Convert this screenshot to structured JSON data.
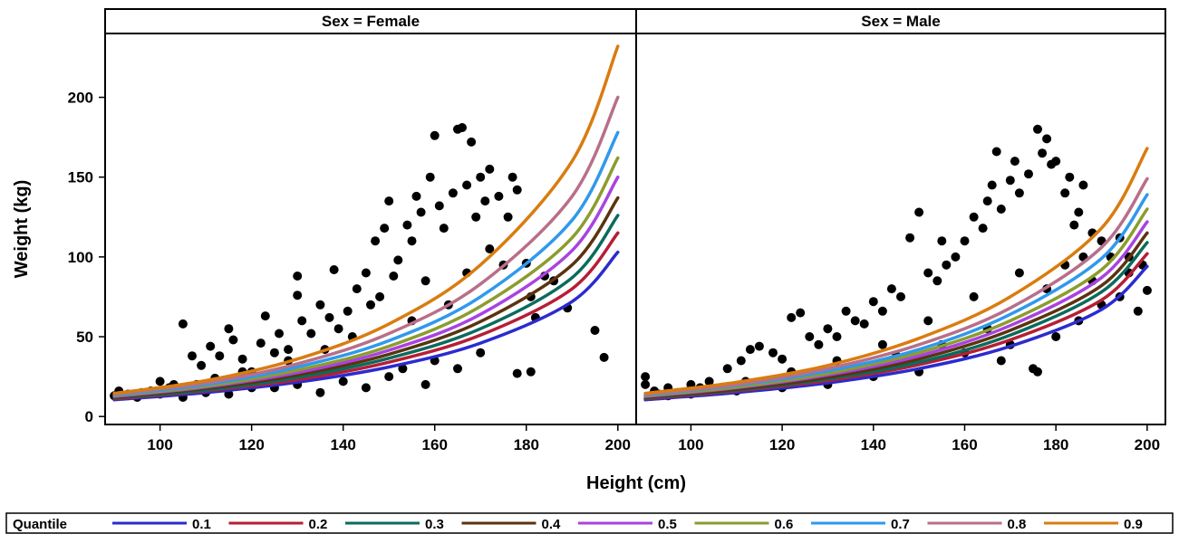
{
  "chart_data": {
    "type": "scatter",
    "xlabel": "Height (cm)",
    "ylabel": "Weight (kg)",
    "xlim": [
      88,
      204
    ],
    "ylim": [
      -5,
      240
    ],
    "xticks": [
      100,
      120,
      140,
      160,
      180,
      200
    ],
    "yticks": [
      0,
      50,
      100,
      150,
      200
    ],
    "grid": false,
    "legend_position": "bottom",
    "legend_title": "Quantile",
    "panels": [
      {
        "title": "Sex = Female",
        "curves": [
          {
            "quantile": "0.1",
            "x": [
              90,
              110,
              130,
              150,
              170,
              190,
              200
            ],
            "y": [
              10.5,
              15,
              21.5,
              31,
              46,
              72,
              103
            ]
          },
          {
            "quantile": "0.2",
            "x": [
              90,
              110,
              130,
              150,
              170,
              190,
              200
            ],
            "y": [
              11,
              16,
              23,
              34,
              51,
              80,
              115
            ]
          },
          {
            "quantile": "0.3",
            "x": [
              90,
              110,
              130,
              150,
              170,
              190,
              200
            ],
            "y": [
              11.5,
              16.5,
              24.5,
              36.5,
              55,
              87,
              126
            ]
          },
          {
            "quantile": "0.4",
            "x": [
              90,
              110,
              130,
              150,
              170,
              190,
              200
            ],
            "y": [
              12,
              17.5,
              26,
              39,
              59.5,
              95,
              137
            ]
          },
          {
            "quantile": "0.5",
            "x": [
              90,
              110,
              130,
              150,
              170,
              190,
              200
            ],
            "y": [
              12.5,
              18.5,
              27.5,
              41.5,
              64,
              104,
              150
            ]
          },
          {
            "quantile": "0.6",
            "x": [
              90,
              110,
              130,
              150,
              170,
              190,
              200
            ],
            "y": [
              13,
              19,
              29,
              44,
              69,
              112,
              162
            ]
          },
          {
            "quantile": "0.7",
            "x": [
              90,
              110,
              130,
              150,
              170,
              190,
              200
            ],
            "y": [
              13.5,
              20,
              31,
              47.5,
              75,
              123,
              178
            ]
          },
          {
            "quantile": "0.8",
            "x": [
              90,
              110,
              130,
              150,
              170,
              190,
              200
            ],
            "y": [
              14,
              21,
              33,
              52,
              83,
              138,
              200
            ]
          },
          {
            "quantile": "0.9",
            "x": [
              90,
              110,
              130,
              150,
              170,
              190,
              200
            ],
            "y": [
              14.5,
              22.5,
              36,
              58,
              95,
              160,
              232
            ]
          }
        ],
        "points": [
          [
            91,
            16
          ],
          [
            96,
            15
          ],
          [
            100,
            22
          ],
          [
            103,
            20
          ],
          [
            105,
            58
          ],
          [
            107,
            38
          ],
          [
            109,
            32
          ],
          [
            111,
            44
          ],
          [
            113,
            38
          ],
          [
            115,
            55
          ],
          [
            116,
            48
          ],
          [
            118,
            36
          ],
          [
            120,
            28
          ],
          [
            122,
            46
          ],
          [
            123,
            63
          ],
          [
            125,
            40
          ],
          [
            126,
            52
          ],
          [
            128,
            42
          ],
          [
            130,
            88
          ],
          [
            130,
            76
          ],
          [
            131,
            60
          ],
          [
            133,
            52
          ],
          [
            135,
            70
          ],
          [
            137,
            62
          ],
          [
            138,
            92
          ],
          [
            139,
            55
          ],
          [
            141,
            66
          ],
          [
            143,
            80
          ],
          [
            145,
            90
          ],
          [
            146,
            70
          ],
          [
            147,
            110
          ],
          [
            149,
            118
          ],
          [
            150,
            135
          ],
          [
            151,
            88
          ],
          [
            152,
            98
          ],
          [
            154,
            120
          ],
          [
            155,
            110
          ],
          [
            156,
            138
          ],
          [
            157,
            128
          ],
          [
            159,
            150
          ],
          [
            160,
            176
          ],
          [
            161,
            132
          ],
          [
            162,
            118
          ],
          [
            164,
            140
          ],
          [
            165,
            180
          ],
          [
            166,
            181
          ],
          [
            167,
            145
          ],
          [
            168,
            172
          ],
          [
            169,
            125
          ],
          [
            170,
            150
          ],
          [
            171,
            135
          ],
          [
            172,
            155
          ],
          [
            174,
            138
          ],
          [
            176,
            125
          ],
          [
            177,
            150
          ],
          [
            178,
            142
          ],
          [
            180,
            96
          ],
          [
            181,
            75
          ],
          [
            182,
            62
          ],
          [
            184,
            88
          ],
          [
            186,
            85
          ],
          [
            189,
            68
          ],
          [
            195,
            54
          ],
          [
            197,
            37
          ],
          [
            178,
            27
          ],
          [
            181,
            28
          ],
          [
            153,
            30
          ],
          [
            158,
            20
          ],
          [
            145,
            18
          ],
          [
            135,
            15
          ],
          [
            125,
            18
          ],
          [
            115,
            14
          ],
          [
            105,
            12
          ],
          [
            165,
            30
          ],
          [
            170,
            40
          ],
          [
            160,
            35
          ],
          [
            150,
            25
          ],
          [
            140,
            22
          ],
          [
            130,
            20
          ],
          [
            120,
            18
          ],
          [
            110,
            15
          ],
          [
            100,
            14
          ],
          [
            95,
            12
          ],
          [
            155,
            60
          ],
          [
            163,
            70
          ],
          [
            167,
            90
          ],
          [
            172,
            105
          ],
          [
            175,
            95
          ],
          [
            158,
            85
          ],
          [
            148,
            75
          ],
          [
            142,
            50
          ],
          [
            136,
            42
          ],
          [
            128,
            35
          ],
          [
            118,
            28
          ],
          [
            112,
            24
          ],
          [
            108,
            20
          ],
          [
            102,
            18
          ],
          [
            98,
            16
          ],
          [
            93,
            14
          ],
          [
            90,
            13
          ]
        ]
      },
      {
        "title": "Sex = Male",
        "curves": [
          {
            "quantile": "0.1",
            "x": [
              90,
              110,
              130,
              150,
              170,
              190,
              200
            ],
            "y": [
              10.5,
              15,
              21,
              30,
              44,
              67,
              94
            ]
          },
          {
            "quantile": "0.2",
            "x": [
              90,
              110,
              130,
              150,
              170,
              190,
              200
            ],
            "y": [
              11,
              16,
              22.5,
              32.5,
              48,
              73,
              102
            ]
          },
          {
            "quantile": "0.3",
            "x": [
              90,
              110,
              130,
              150,
              170,
              190,
              200
            ],
            "y": [
              11.5,
              16.5,
              23.5,
              34,
              51,
              78,
              109
            ]
          },
          {
            "quantile": "0.4",
            "x": [
              90,
              110,
              130,
              150,
              170,
              190,
              200
            ],
            "y": [
              12,
              17,
              24.5,
              36,
              54,
              82,
              115
            ]
          },
          {
            "quantile": "0.5",
            "x": [
              90,
              110,
              130,
              150,
              170,
              190,
              200
            ],
            "y": [
              12.5,
              18,
              26,
              38,
              57,
              87,
              122
            ]
          },
          {
            "quantile": "0.6",
            "x": [
              90,
              110,
              130,
              150,
              170,
              190,
              200
            ],
            "y": [
              13,
              18.5,
              27,
              40,
              60,
              92,
              130
            ]
          },
          {
            "quantile": "0.7",
            "x": [
              90,
              110,
              130,
              150,
              170,
              190,
              200
            ],
            "y": [
              13.5,
              19.5,
              28.5,
              42,
              64,
              99,
              139
            ]
          },
          {
            "quantile": "0.8",
            "x": [
              90,
              110,
              130,
              150,
              170,
              190,
              200
            ],
            "y": [
              14,
              20,
              30,
              45,
              68,
              106,
              149
            ]
          },
          {
            "quantile": "0.9",
            "x": [
              90,
              110,
              130,
              150,
              170,
              190,
              200
            ],
            "y": [
              14.5,
              21.5,
              32,
              49,
              75,
              118,
              168
            ]
          }
        ],
        "points": [
          [
            90,
            25
          ],
          [
            90,
            20
          ],
          [
            92,
            16
          ],
          [
            95,
            18
          ],
          [
            100,
            20
          ],
          [
            104,
            22
          ],
          [
            108,
            30
          ],
          [
            111,
            35
          ],
          [
            113,
            42
          ],
          [
            115,
            44
          ],
          [
            118,
            40
          ],
          [
            120,
            36
          ],
          [
            122,
            62
          ],
          [
            124,
            65
          ],
          [
            126,
            50
          ],
          [
            128,
            45
          ],
          [
            130,
            55
          ],
          [
            132,
            50
          ],
          [
            134,
            66
          ],
          [
            136,
            60
          ],
          [
            138,
            58
          ],
          [
            140,
            72
          ],
          [
            142,
            66
          ],
          [
            144,
            80
          ],
          [
            146,
            75
          ],
          [
            148,
            112
          ],
          [
            150,
            128
          ],
          [
            152,
            90
          ],
          [
            154,
            85
          ],
          [
            155,
            110
          ],
          [
            156,
            95
          ],
          [
            158,
            100
          ],
          [
            160,
            110
          ],
          [
            162,
            125
          ],
          [
            164,
            118
          ],
          [
            165,
            135
          ],
          [
            166,
            145
          ],
          [
            167,
            166
          ],
          [
            168,
            130
          ],
          [
            170,
            148
          ],
          [
            171,
            160
          ],
          [
            172,
            140
          ],
          [
            174,
            152
          ],
          [
            176,
            180
          ],
          [
            177,
            165
          ],
          [
            178,
            174
          ],
          [
            179,
            158
          ],
          [
            180,
            160
          ],
          [
            182,
            140
          ],
          [
            183,
            150
          ],
          [
            184,
            120
          ],
          [
            185,
            128
          ],
          [
            186,
            145
          ],
          [
            188,
            115
          ],
          [
            190,
            110
          ],
          [
            192,
            100
          ],
          [
            194,
            112
          ],
          [
            196,
            90
          ],
          [
            198,
            66
          ],
          [
            200,
            79
          ],
          [
            150,
            28
          ],
          [
            140,
            25
          ],
          [
            130,
            20
          ],
          [
            120,
            18
          ],
          [
            110,
            16
          ],
          [
            100,
            14
          ],
          [
            95,
            13
          ],
          [
            160,
            40
          ],
          [
            170,
            45
          ],
          [
            175,
            30
          ],
          [
            180,
            50
          ],
          [
            185,
            60
          ],
          [
            190,
            70
          ],
          [
            165,
            55
          ],
          [
            155,
            45
          ],
          [
            145,
            38
          ],
          [
            135,
            30
          ],
          [
            125,
            25
          ],
          [
            115,
            20
          ],
          [
            105,
            17
          ],
          [
            176,
            28
          ],
          [
            168,
            35
          ],
          [
            178,
            80
          ],
          [
            182,
            95
          ],
          [
            172,
            90
          ],
          [
            162,
            75
          ],
          [
            152,
            60
          ],
          [
            142,
            45
          ],
          [
            132,
            35
          ],
          [
            122,
            28
          ],
          [
            112,
            22
          ],
          [
            102,
            18
          ],
          [
            97,
            15
          ],
          [
            93,
            14
          ],
          [
            91,
            13
          ],
          [
            188,
            85
          ],
          [
            194,
            75
          ],
          [
            196,
            100
          ],
          [
            199,
            95
          ],
          [
            186,
            100
          ]
        ]
      }
    ],
    "series": [
      {
        "name": "0.1",
        "color": "#2b2bcf"
      },
      {
        "name": "0.2",
        "color": "#b61e35"
      },
      {
        "name": "0.3",
        "color": "#0a6b5c"
      },
      {
        "name": "0.4",
        "color": "#5b3310"
      },
      {
        "name": "0.5",
        "color": "#a843e0"
      },
      {
        "name": "0.6",
        "color": "#8c9c2e"
      },
      {
        "name": "0.7",
        "color": "#2f99ec"
      },
      {
        "name": "0.8",
        "color": "#b86f89"
      },
      {
        "name": "0.9",
        "color": "#d97c0f"
      }
    ],
    "point_color": "#000000"
  }
}
